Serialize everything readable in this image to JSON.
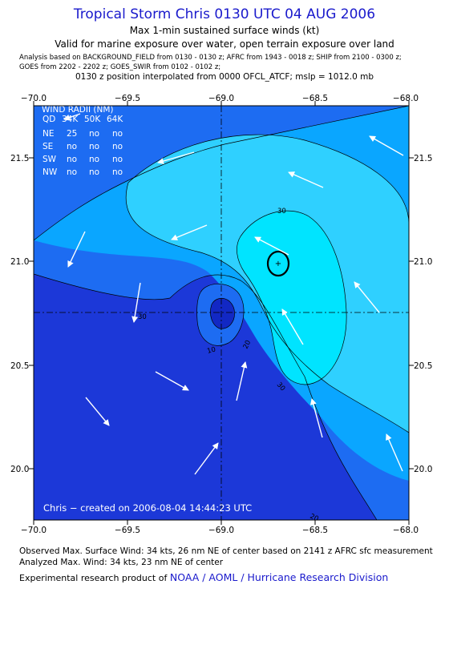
{
  "header": {
    "title": "Tropical Storm Chris 0130 UTC 04 AUG 2006",
    "subtitle1": "Max 1-min sustained surface winds (kt)",
    "subtitle2": "Valid for marine exposure over water, open terrain exposure over land",
    "analysis_line1": "Analysis based on  BACKGROUND_FIELD from 0130 - 0130 z;  AFRC from 1943 - 0018 z;  SHIP from 2100 - 0300 z;",
    "analysis_line2": "GOES from 2202 - 2202 z;  GOES_SWIR from 0102 - 0102 z;",
    "interp_line": "0130 z position interpolated from 0000 OFCL_ATCF; mslp = 1012.0 mb"
  },
  "map": {
    "x_ticks": [
      "−70.0",
      "−69.5",
      "−69.0",
      "−68.5",
      "−68.0"
    ],
    "y_ticks": [
      "21.5",
      "21.0",
      "20.5",
      "20.0"
    ],
    "contour_labels": [
      "30",
      "30",
      "30",
      "20",
      "10",
      "20"
    ],
    "wind_radii": {
      "title": "WIND RADII (NM)",
      "header": [
        "QD",
        "34K",
        "50K",
        "64K"
      ],
      "rows": [
        [
          "NE",
          "25",
          "no",
          "no"
        ],
        [
          "SE",
          "no",
          "no",
          "no"
        ],
        [
          "SW",
          "no",
          "no",
          "no"
        ],
        [
          "NW",
          "no",
          "no",
          "no"
        ]
      ]
    },
    "credit": "Chris − created on 2006-08-04 14:44:23 UTC",
    "colors": {
      "deep": "#1c38d8",
      "mid": "#1d6cf2",
      "light": "#0aa6ff",
      "lighter": "#2fd0ff",
      "lightest": "#00e4ff",
      "core": "#1228c4"
    }
  },
  "footer": {
    "observed": "Observed Max. Surface Wind: 34 kts, 26 nm NE of center based on 2141 z AFRC sfc measurement",
    "analyzed": "Analyzed Max. Wind: 34 kts, 23 nm NE of center",
    "experimental_prefix": "Experimental research product of",
    "org": "NOAA / AOML / Hurricane Research Division"
  }
}
